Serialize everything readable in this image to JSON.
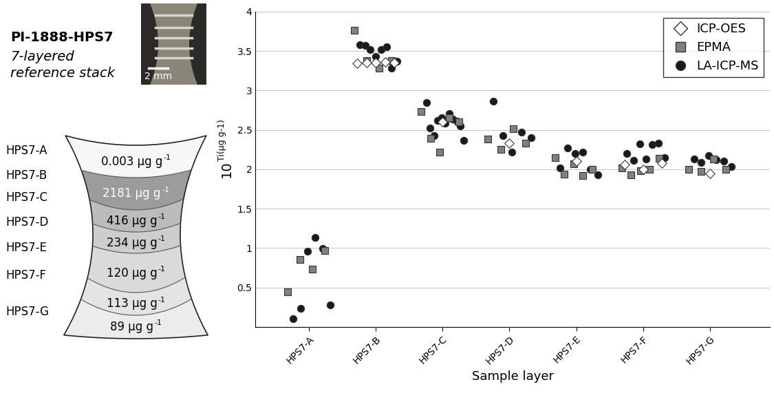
{
  "header": {
    "title": "PI-1888-HPS7",
    "subtitle_lines": [
      "7-layered",
      "reference stack"
    ],
    "scale_bar": "2 mm"
  },
  "diagram": {
    "unit": "µg g",
    "unit_exponent": "-1",
    "layers": [
      {
        "name": "HPS7-A",
        "concentration": 0.003,
        "color": "#f7f7f7"
      },
      {
        "name": "HPS7-B",
        "concentration": 2181,
        "color": "#9c9c9c"
      },
      {
        "name": "HPS7-C",
        "concentration": 416,
        "color": "#bcbcbc"
      },
      {
        "name": "HPS7-D",
        "concentration": 234,
        "color": "#cdcdcd"
      },
      {
        "name": "HPS7-E",
        "concentration": 120,
        "color": "#dadada"
      },
      {
        "name": "HPS7-F",
        "concentration": 113,
        "color": "#e4e4e4"
      },
      {
        "name": "HPS7-G",
        "concentration": 89,
        "color": "#ececec"
      }
    ]
  },
  "chart_data": {
    "type": "scatter",
    "x_label": "Sample layer",
    "y_label": {
      "base": "10",
      "exponent": "Ti(µg g-1)"
    },
    "categories": [
      "HPS7-A",
      "HPS7-B",
      "HPS7-C",
      "HPS7-D",
      "HPS7-E",
      "HPS7-F",
      "HPS7-G"
    ],
    "ylim": [
      0,
      4
    ],
    "yticks": [
      0.5,
      1,
      1.5,
      2,
      2.5,
      3,
      3.5,
      4
    ],
    "grid": true,
    "legend": "upper right",
    "series": [
      {
        "name": "ICP-OES",
        "color": "#ffffff",
        "marker": "diamond",
        "values": [
          [],
          [
            3.34,
            3.35,
            3.35,
            3.36,
            3.35
          ],
          [
            2.6
          ],
          [
            2.33
          ],
          [
            2.1
          ],
          [
            2.06,
            2.0,
            2.08
          ],
          [
            1.95
          ]
        ]
      },
      {
        "name": "EPMA",
        "color": "#808080",
        "marker": "square",
        "values": [
          [
            0.44,
            0.85,
            0.73,
            0.97
          ],
          [
            3.76,
            3.38,
            3.28,
            3.38
          ],
          [
            2.73,
            2.39,
            2.22,
            2.65,
            2.6
          ],
          [
            2.38,
            2.25,
            2.51,
            2.33
          ],
          [
            2.15,
            1.94,
            2.07,
            1.92,
            2.0
          ],
          [
            2.02,
            1.93,
            1.98,
            2.0,
            2.14
          ],
          [
            2.0,
            1.97,
            2.13,
            2.0
          ]
        ]
      },
      {
        "name": "LA-ICP-MS",
        "color": "#1a1a1a",
        "marker": "circle",
        "values": [
          [
            0.1,
            0.23,
            0.96,
            1.13,
            0.99,
            0.28
          ],
          [
            3.58,
            3.57,
            3.52,
            3.43,
            3.52,
            3.55,
            3.28,
            3.37
          ],
          [
            2.85,
            2.52,
            2.43,
            2.62,
            2.65,
            2.58,
            2.71,
            2.64,
            2.61,
            2.55,
            2.37
          ],
          [
            2.86,
            2.43,
            2.22,
            2.47,
            2.4
          ],
          [
            2.02,
            2.27,
            2.2,
            2.22,
            2.0,
            1.93
          ],
          [
            2.2,
            2.11,
            2.32,
            2.13,
            2.31,
            2.33,
            2.15
          ],
          [
            2.13,
            2.09,
            2.17,
            2.12,
            2.1,
            2.03
          ]
        ]
      }
    ]
  }
}
